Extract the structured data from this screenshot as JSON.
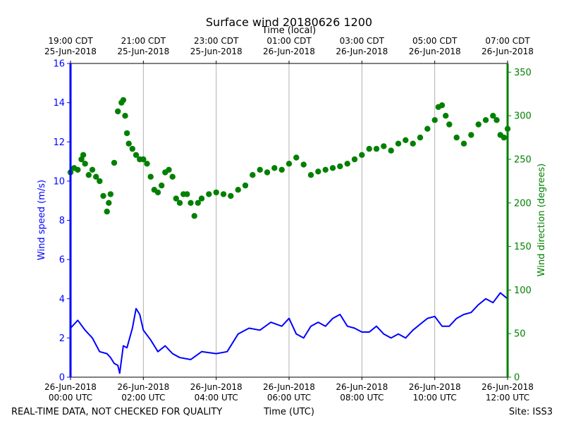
{
  "chart_data": {
    "type": "line",
    "title": "Surface wind 20180626 1200",
    "top_xlabel": "Time (local)",
    "xlabel": "Time (UTC)",
    "ylabel_left": "Wind speed (m/s)",
    "ylabel_right": "Wind direction (degrees)",
    "footer_left": "REAL-TIME DATA, NOT CHECKED FOR QUALITY",
    "footer_right": "Site: ISS3",
    "x_domain_hours": [
      0,
      12
    ],
    "ylim_left": [
      0,
      16
    ],
    "ylim_right": [
      0,
      360
    ],
    "grid": "vertical",
    "colors": {
      "speed": "#0000ff",
      "direction": "#008000",
      "grid": "#b0b0b0",
      "frame": "#000000"
    },
    "yticks_left": [
      "0",
      "2",
      "4",
      "6",
      "8",
      "10",
      "12",
      "14",
      "16"
    ],
    "yticks_right": [
      "0",
      "50",
      "100",
      "150",
      "200",
      "250",
      "300",
      "350"
    ],
    "xticks_bottom": [
      {
        "date": "26-Jun-2018",
        "time": "00:00 UTC"
      },
      {
        "date": "26-Jun-2018",
        "time": "02:00 UTC"
      },
      {
        "date": "26-Jun-2018",
        "time": "04:00 UTC"
      },
      {
        "date": "26-Jun-2018",
        "time": "06:00 UTC"
      },
      {
        "date": "26-Jun-2018",
        "time": "08:00 UTC"
      },
      {
        "date": "26-Jun-2018",
        "time": "10:00 UTC"
      },
      {
        "date": "26-Jun-2018",
        "time": "12:00 UTC"
      }
    ],
    "xticks_top": [
      {
        "time": "19:00 CDT",
        "date": "25-Jun-2018"
      },
      {
        "time": "21:00 CDT",
        "date": "25-Jun-2018"
      },
      {
        "time": "23:00 CDT",
        "date": "25-Jun-2018"
      },
      {
        "time": "01:00 CDT",
        "date": "26-Jun-2018"
      },
      {
        "time": "03:00 CDT",
        "date": "26-Jun-2018"
      },
      {
        "time": "05:00 CDT",
        "date": "26-Jun-2018"
      },
      {
        "time": "07:00 CDT",
        "date": "26-Jun-2018"
      }
    ],
    "series": [
      {
        "axis": "left",
        "style": "line",
        "x_hours": [
          0,
          0.2,
          0.4,
          0.6,
          0.8,
          1.0,
          1.1,
          1.2,
          1.3,
          1.35,
          1.45,
          1.55,
          1.7,
          1.8,
          1.9,
          2.0,
          2.2,
          2.4,
          2.6,
          2.8,
          3.0,
          3.3,
          3.6,
          4.0,
          4.3,
          4.6,
          4.9,
          5.2,
          5.5,
          5.8,
          6.0,
          6.2,
          6.4,
          6.6,
          6.8,
          7.0,
          7.2,
          7.4,
          7.6,
          7.8,
          8.0,
          8.2,
          8.4,
          8.6,
          8.8,
          9.0,
          9.2,
          9.4,
          9.6,
          9.8,
          10.0,
          10.2,
          10.4,
          10.6,
          10.8,
          11.0,
          11.2,
          11.4,
          11.6,
          11.8,
          12.0
        ],
        "values": [
          2.5,
          2.9,
          2.4,
          2.0,
          1.3,
          1.2,
          1.0,
          0.7,
          0.6,
          0.2,
          1.6,
          1.5,
          2.5,
          3.5,
          3.2,
          2.4,
          1.9,
          1.3,
          1.6,
          1.2,
          1.0,
          0.9,
          1.3,
          1.2,
          1.3,
          2.2,
          2.5,
          2.4,
          2.8,
          2.6,
          3.0,
          2.2,
          2.0,
          2.6,
          2.8,
          2.6,
          3.0,
          3.2,
          2.6,
          2.5,
          2.3,
          2.3,
          2.6,
          2.2,
          2.0,
          2.2,
          2.0,
          2.4,
          2.7,
          3.0,
          3.1,
          2.6,
          2.6,
          3.0,
          3.2,
          3.3,
          3.7,
          4.0,
          3.8,
          4.3,
          4.0
        ]
      },
      {
        "axis": "right",
        "style": "markers",
        "x_hours": [
          0,
          0.1,
          0.2,
          0.3,
          0.35,
          0.4,
          0.5,
          0.6,
          0.7,
          0.8,
          0.9,
          1.0,
          1.05,
          1.1,
          1.2,
          1.3,
          1.4,
          1.45,
          1.5,
          1.55,
          1.6,
          1.7,
          1.8,
          1.9,
          2.0,
          2.1,
          2.2,
          2.3,
          2.4,
          2.5,
          2.6,
          2.7,
          2.8,
          2.9,
          3.0,
          3.1,
          3.2,
          3.3,
          3.4,
          3.5,
          3.6,
          3.8,
          4.0,
          4.2,
          4.4,
          4.6,
          4.8,
          5.0,
          5.2,
          5.4,
          5.6,
          5.8,
          6.0,
          6.2,
          6.4,
          6.6,
          6.8,
          7.0,
          7.2,
          7.4,
          7.6,
          7.8,
          8.0,
          8.2,
          8.4,
          8.6,
          8.8,
          9.0,
          9.2,
          9.4,
          9.6,
          9.8,
          10.0,
          10.1,
          10.2,
          10.3,
          10.4,
          10.6,
          10.8,
          11.0,
          11.2,
          11.4,
          11.6,
          11.7,
          11.8,
          11.9,
          12.0
        ],
        "values": [
          235,
          240,
          238,
          250,
          255,
          245,
          232,
          238,
          230,
          225,
          208,
          190,
          200,
          210,
          246,
          305,
          315,
          318,
          300,
          280,
          268,
          262,
          255,
          250,
          250,
          245,
          230,
          215,
          212,
          220,
          235,
          238,
          230,
          205,
          200,
          210,
          210,
          200,
          185,
          200,
          205,
          210,
          212,
          210,
          208,
          215,
          220,
          232,
          238,
          235,
          240,
          238,
          245,
          252,
          244,
          232,
          236,
          238,
          240,
          242,
          245,
          250,
          255,
          262,
          262,
          265,
          260,
          268,
          272,
          268,
          275,
          285,
          295,
          310,
          312,
          300,
          290,
          275,
          268,
          278,
          290,
          295,
          300,
          295,
          278,
          275,
          285
        ]
      }
    ]
  }
}
